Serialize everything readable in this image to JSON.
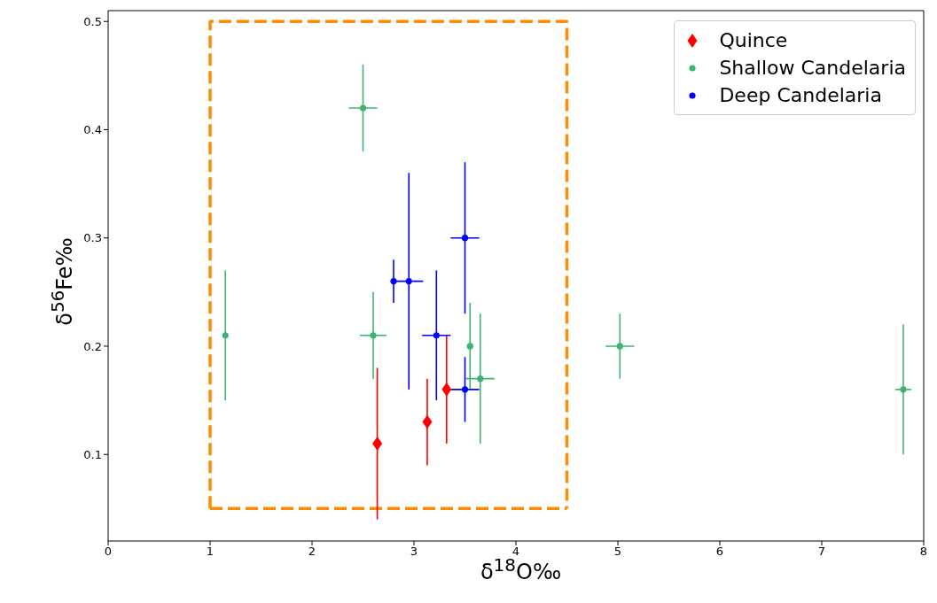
{
  "chart_data": {
    "type": "scatter",
    "xlabel": "δ$^{18}$O‰",
    "ylabel": "δ$^{56}$Fe‰",
    "xlim": [
      0,
      8
    ],
    "xticks": [
      0,
      1,
      2,
      3,
      4,
      5,
      6,
      7,
      8
    ],
    "ylim": [
      0.02,
      0.51
    ],
    "yticks": [
      0.1,
      0.2,
      0.3,
      0.4,
      0.5
    ],
    "grid": false,
    "legend": "top right",
    "series": [
      {
        "type": "line",
        "color": "#ff8c00",
        "line_style": "dashed",
        "marker": "none",
        "x": [
          1,
          1,
          4.5,
          4.5
        ],
        "values": [
          0.05,
          0.5,
          0.5,
          0.05
        ]
      },
      {
        "type": "line",
        "color": "#ff8c00",
        "line_style": "dashed",
        "marker": "none",
        "x": [
          1,
          4.5
        ],
        "values": [
          0.05,
          0.05
        ]
      },
      {
        "name": "Quince",
        "color": "#ff0000",
        "marker": "diamond",
        "x": [
          2.64,
          3.13,
          3.32
        ],
        "values": [
          0.11,
          0.13,
          0.16
        ],
        "errors": [
          0.07,
          0.04,
          0.05
        ]
      },
      {
        "name": "Shallow Candelaria",
        "color": "#3cb371",
        "marker": "circle",
        "x": [
          1.15,
          2.5,
          2.6,
          3.55,
          3.65,
          5.02,
          7.8
        ],
        "values": [
          0.21,
          0.42,
          0.21,
          0.2,
          0.17,
          0.2,
          0.16
        ],
        "errors": [
          0.06,
          0.04,
          0.04,
          0.04,
          0.06,
          0.03,
          0.06
        ],
        "xerrors": [
          null,
          0.14,
          0.13,
          0.03,
          0.14,
          0.14,
          0.08
        ]
      },
      {
        "name": "Deep Candelaria",
        "color": "#0000ff",
        "marker": "circle",
        "x": [
          2.8,
          2.95,
          3.22,
          3.5,
          3.5
        ],
        "values": [
          0.26,
          0.26,
          0.21,
          0.3,
          0.16
        ],
        "errors": [
          0.02,
          0.1,
          0.06,
          0.07,
          0.03
        ],
        "xerrors": [
          null,
          0.14,
          0.14,
          0.14,
          0.14
        ]
      }
    ]
  }
}
